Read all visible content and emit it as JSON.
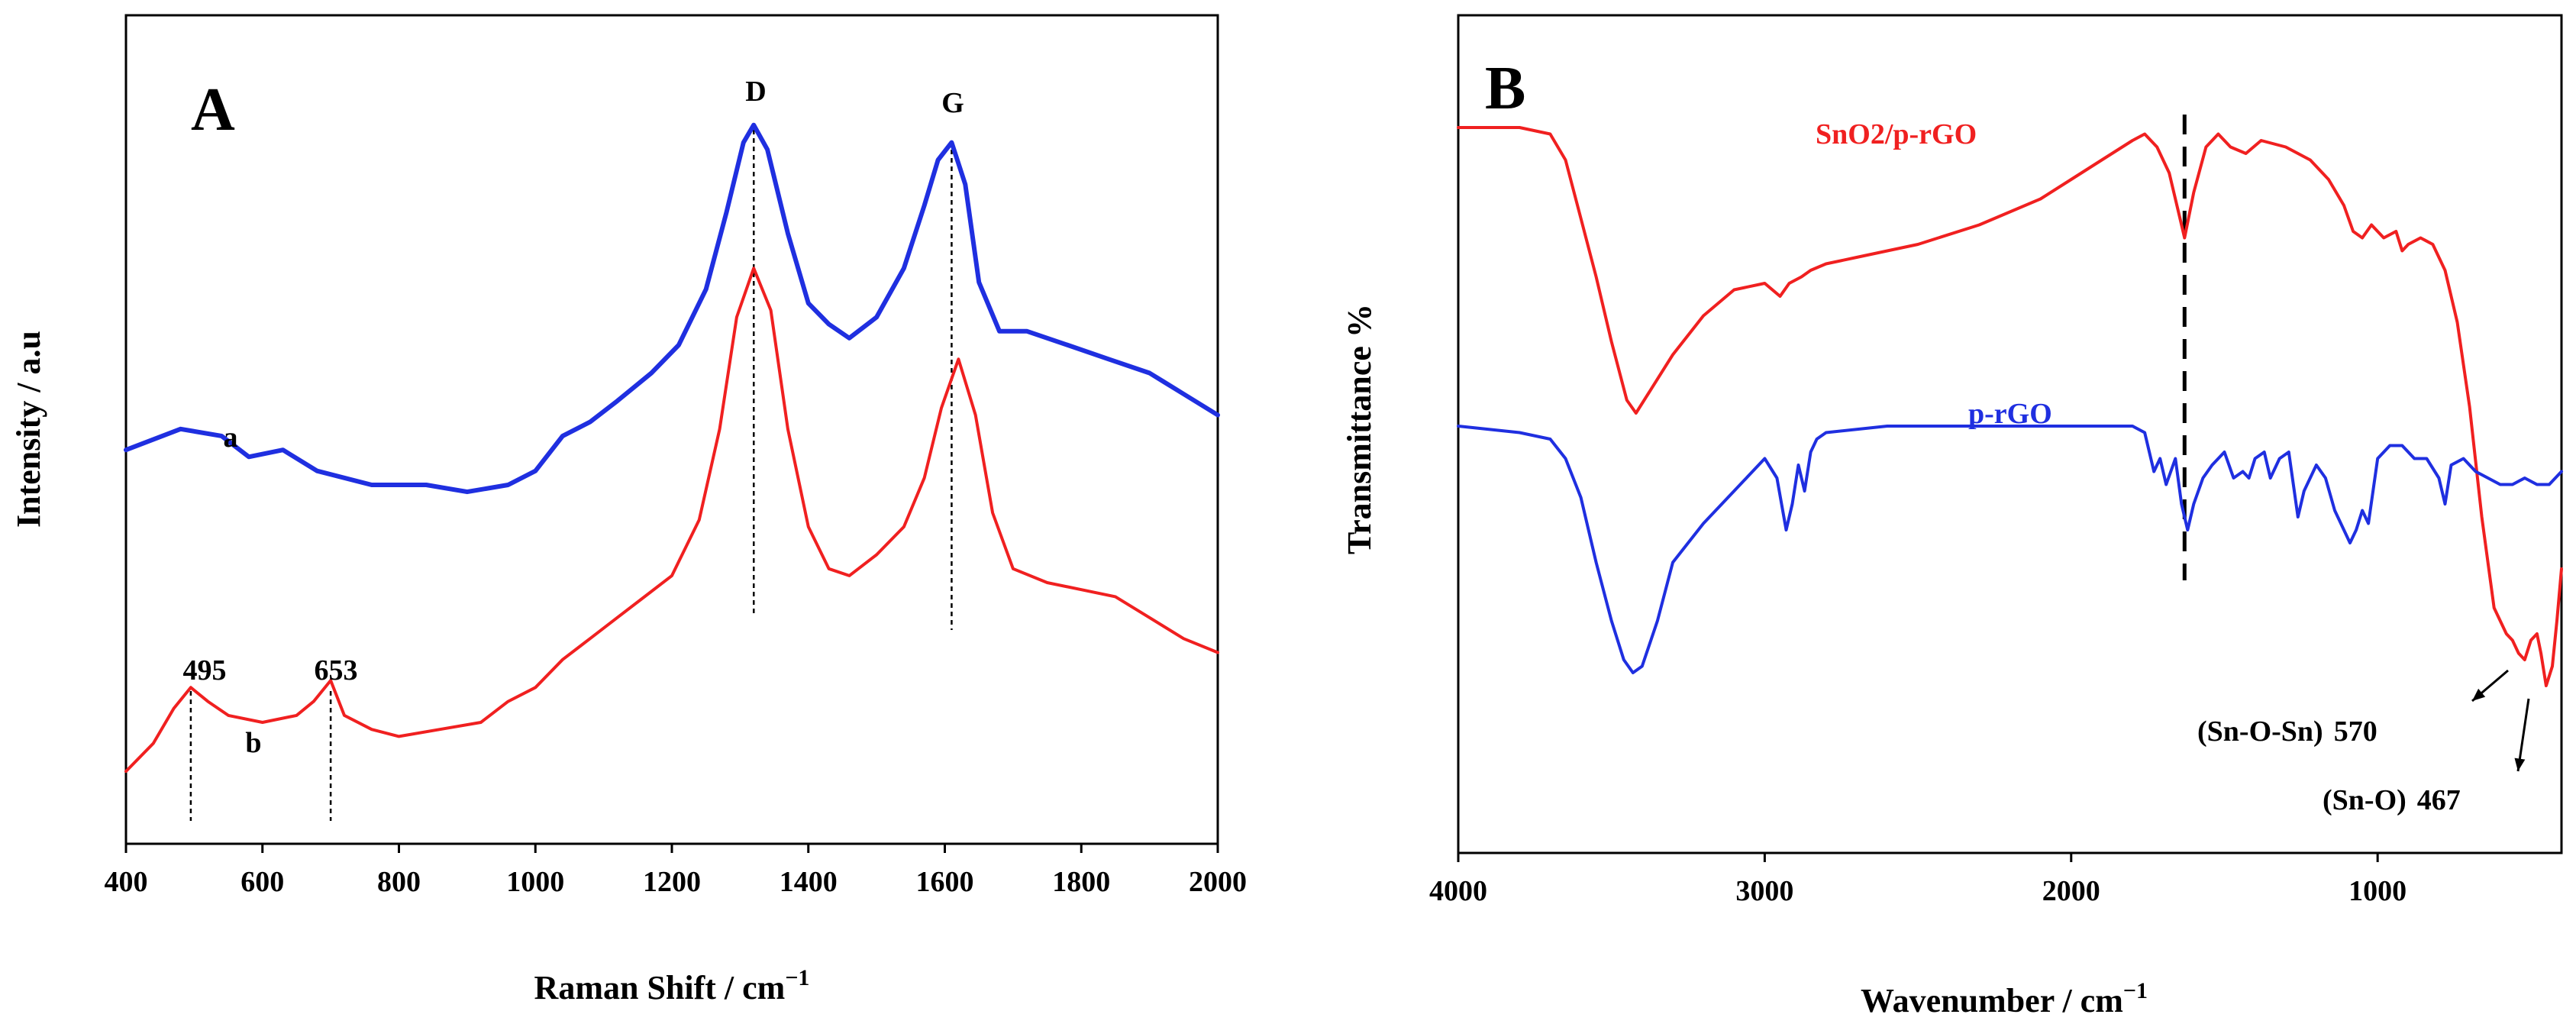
{
  "chart_data": [
    {
      "panel": "A",
      "type": "line",
      "xlabel": "Raman Shift / cm",
      "xlabel_sup": "−1",
      "ylabel": "Intensity / a.u",
      "xlim": [
        400,
        2000
      ],
      "ylim": [
        0,
        1
      ],
      "xticks": [
        "400",
        "600",
        "800",
        "1000",
        "1200",
        "1400",
        "1600",
        "1800",
        "2000"
      ],
      "series": [
        {
          "name": "a",
          "color": "#1f2fe0",
          "x": [
            400,
            480,
            540,
            580,
            630,
            680,
            760,
            840,
            900,
            960,
            1000,
            1040,
            1080,
            1120,
            1170,
            1210,
            1250,
            1280,
            1305,
            1320,
            1340,
            1370,
            1400,
            1430,
            1460,
            1500,
            1540,
            1570,
            1590,
            1610,
            1630,
            1650,
            1680,
            1720,
            1780,
            1840,
            1900,
            1950,
            2000
          ],
          "y": [
            0.52,
            0.55,
            0.54,
            0.51,
            0.52,
            0.49,
            0.47,
            0.47,
            0.46,
            0.47,
            0.49,
            0.54,
            0.56,
            0.59,
            0.63,
            0.67,
            0.75,
            0.86,
            0.96,
            0.985,
            0.95,
            0.83,
            0.73,
            0.7,
            0.68,
            0.71,
            0.78,
            0.87,
            0.935,
            0.96,
            0.9,
            0.76,
            0.69,
            0.69,
            0.67,
            0.65,
            0.63,
            0.6,
            0.57
          ]
        },
        {
          "name": "b",
          "color": "#f02020",
          "x": [
            400,
            440,
            470,
            495,
            520,
            550,
            600,
            650,
            675,
            700,
            720,
            760,
            800,
            860,
            920,
            960,
            1000,
            1040,
            1080,
            1120,
            1160,
            1200,
            1240,
            1270,
            1295,
            1320,
            1345,
            1370,
            1400,
            1430,
            1460,
            1500,
            1540,
            1570,
            1595,
            1620,
            1645,
            1670,
            1700,
            1750,
            1800,
            1850,
            1900,
            1950,
            2000
          ],
          "y": [
            0.06,
            0.1,
            0.15,
            0.18,
            0.16,
            0.14,
            0.13,
            0.14,
            0.16,
            0.19,
            0.14,
            0.12,
            0.11,
            0.12,
            0.13,
            0.16,
            0.18,
            0.22,
            0.25,
            0.28,
            0.31,
            0.34,
            0.42,
            0.55,
            0.71,
            0.78,
            0.72,
            0.55,
            0.41,
            0.35,
            0.34,
            0.37,
            0.41,
            0.48,
            0.58,
            0.65,
            0.57,
            0.43,
            0.35,
            0.33,
            0.32,
            0.31,
            0.28,
            0.25,
            0.23
          ]
        }
      ],
      "series_labels": [
        "a",
        "b"
      ],
      "annotations": {
        "D": "D",
        "G": "G",
        "p495": "495",
        "p653": "653"
      }
    },
    {
      "panel": "B",
      "type": "line",
      "xlabel": "Wavenumber / cm",
      "xlabel_sup": "−1",
      "ylabel": "Transmittance %",
      "xlim": [
        4000,
        400
      ],
      "ylim": [
        0,
        1
      ],
      "xticks": [
        "4000",
        "3000",
        "2000",
        "1000"
      ],
      "series": [
        {
          "name": "SnO2/p-rGO",
          "color": "#f02020",
          "x": [
            4000,
            3800,
            3700,
            3650,
            3600,
            3550,
            3500,
            3450,
            3420,
            3380,
            3300,
            3200,
            3100,
            3000,
            2950,
            2920,
            2880,
            2850,
            2800,
            2700,
            2600,
            2500,
            2300,
            2100,
            2000,
            1900,
            1800,
            1760,
            1720,
            1680,
            1650,
            1630,
            1600,
            1560,
            1520,
            1480,
            1430,
            1380,
            1300,
            1220,
            1160,
            1110,
            1080,
            1050,
            1020,
            980,
            940,
            920,
            900,
            860,
            820,
            780,
            740,
            700,
            660,
            620,
            580,
            560,
            540,
            520,
            500,
            480,
            467,
            450,
            430,
            415,
            400
          ],
          "y": [
            0.98,
            0.98,
            0.97,
            0.93,
            0.84,
            0.75,
            0.65,
            0.56,
            0.54,
            0.57,
            0.63,
            0.69,
            0.73,
            0.74,
            0.72,
            0.74,
            0.75,
            0.76,
            0.77,
            0.78,
            0.79,
            0.8,
            0.83,
            0.87,
            0.9,
            0.93,
            0.96,
            0.97,
            0.95,
            0.91,
            0.85,
            0.81,
            0.88,
            0.95,
            0.97,
            0.95,
            0.94,
            0.96,
            0.95,
            0.93,
            0.9,
            0.86,
            0.82,
            0.81,
            0.83,
            0.81,
            0.82,
            0.79,
            0.8,
            0.81,
            0.8,
            0.76,
            0.68,
            0.55,
            0.38,
            0.24,
            0.2,
            0.19,
            0.17,
            0.16,
            0.19,
            0.2,
            0.17,
            0.12,
            0.15,
            0.22,
            0.3
          ]
        },
        {
          "name": "p-rGO",
          "color": "#1f2fe0",
          "x": [
            4000,
            3800,
            3700,
            3650,
            3600,
            3550,
            3500,
            3460,
            3430,
            3400,
            3350,
            3300,
            3200,
            3100,
            3000,
            2960,
            2930,
            2910,
            2890,
            2870,
            2850,
            2830,
            2800,
            2600,
            2400,
            2200,
            2000,
            1800,
            1760,
            1730,
            1710,
            1690,
            1660,
            1640,
            1620,
            1600,
            1570,
            1540,
            1500,
            1470,
            1440,
            1420,
            1400,
            1370,
            1350,
            1320,
            1290,
            1260,
            1240,
            1200,
            1170,
            1140,
            1110,
            1090,
            1070,
            1050,
            1030,
            1000,
            960,
            920,
            880,
            840,
            800,
            780,
            760,
            720,
            680,
            640,
            600,
            560,
            520,
            480,
            440,
            400
          ],
          "y": [
            0.52,
            0.51,
            0.5,
            0.47,
            0.41,
            0.31,
            0.22,
            0.16,
            0.14,
            0.15,
            0.22,
            0.31,
            0.37,
            0.42,
            0.47,
            0.44,
            0.36,
            0.4,
            0.46,
            0.42,
            0.48,
            0.5,
            0.51,
            0.52,
            0.52,
            0.52,
            0.52,
            0.52,
            0.51,
            0.45,
            0.47,
            0.43,
            0.47,
            0.4,
            0.36,
            0.4,
            0.44,
            0.46,
            0.48,
            0.44,
            0.45,
            0.44,
            0.47,
            0.48,
            0.44,
            0.47,
            0.48,
            0.38,
            0.42,
            0.46,
            0.44,
            0.39,
            0.36,
            0.34,
            0.36,
            0.39,
            0.37,
            0.47,
            0.49,
            0.49,
            0.47,
            0.47,
            0.44,
            0.4,
            0.46,
            0.47,
            0.45,
            0.44,
            0.43,
            0.43,
            0.44,
            0.43,
            0.43,
            0.45
          ]
        }
      ],
      "series_labels": [
        "SnO2/p-rGO",
        "p-rGO"
      ],
      "annotations": {
        "sn_o_sn_label": "(Sn-O-Sn)",
        "sn_o_sn_value": "570",
        "sn_o_label": "(Sn-O)",
        "sn_o_value": "467",
        "dashed_marker_x": 1630
      }
    }
  ]
}
